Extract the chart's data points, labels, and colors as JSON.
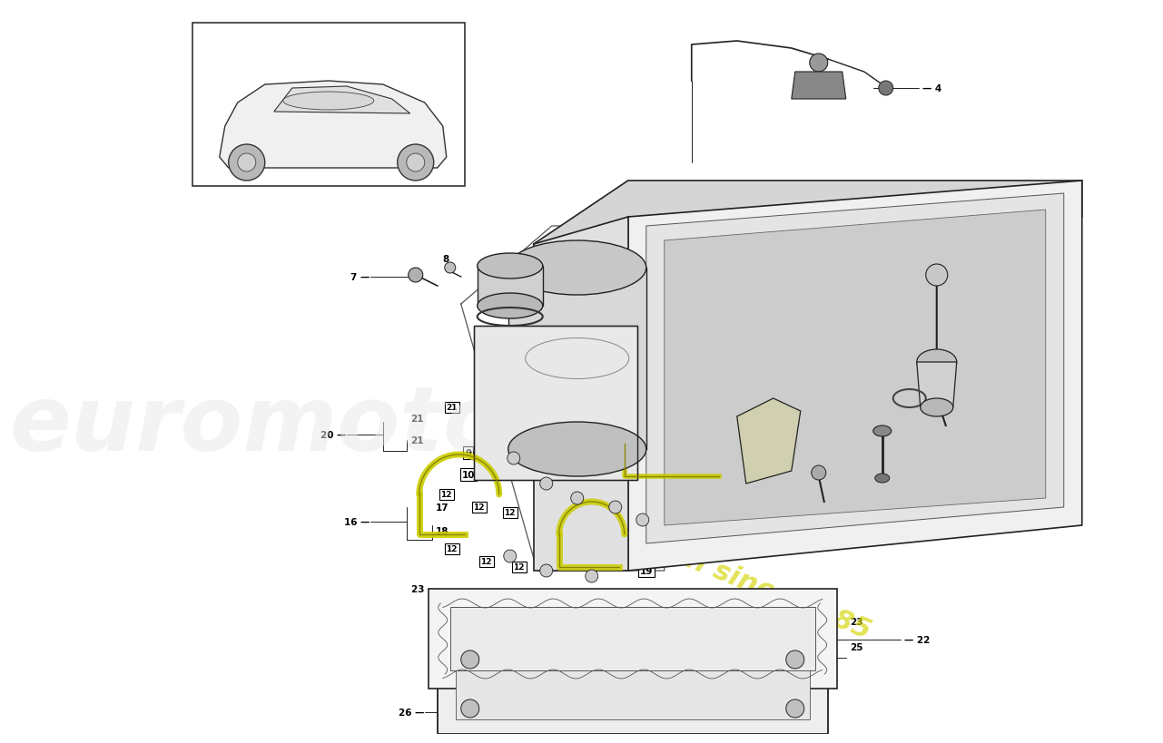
{
  "bg": "#ffffff",
  "lc": "#222222",
  "wm1": "euromotores",
  "wm2": "a passion since 1985",
  "wm1_color": "#e8e8e8",
  "wm2_color": "#d4d400",
  "highlight": "#cccc00"
}
